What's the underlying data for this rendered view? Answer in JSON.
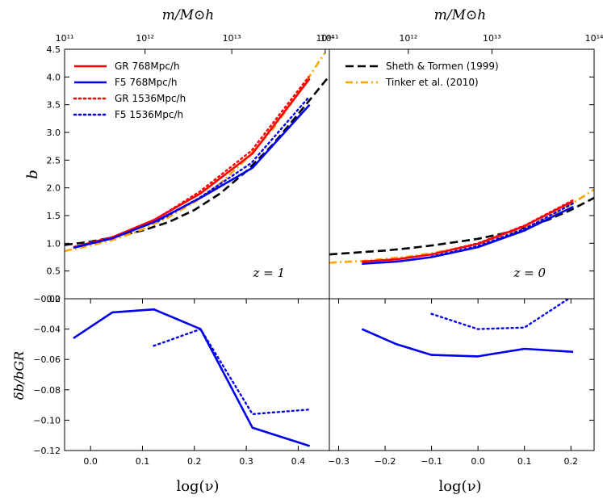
{
  "chart_data": [
    {
      "name": "top-left",
      "type": "line",
      "annotation": "z = 1",
      "ylabel": "b",
      "top_axis_label": "m/M⊙h",
      "ylim": [
        0,
        4.5
      ],
      "xlim": [
        -0.05,
        0.46
      ],
      "yticks": [
        0.0,
        0.5,
        1.0,
        1.5,
        2.0,
        2.5,
        3.0,
        3.5,
        4.0,
        4.5
      ],
      "ytick_labels": [
        "0.0",
        "0.5",
        "1.0",
        "1.5",
        "2.0",
        "2.5",
        "3.0",
        "3.5",
        "4.0",
        "4.5"
      ],
      "top_ticks": [
        {
          "x": -0.05,
          "label": "10¹¹"
        },
        {
          "x": 0.105,
          "label": "10¹²"
        },
        {
          "x": 0.272,
          "label": "10¹³"
        },
        {
          "x": 0.452,
          "label": "10¹⁴"
        }
      ],
      "series": [
        {
          "name": "Sheth & Tormen (1999)",
          "color": "#000000",
          "style": "dashed",
          "x": [
            -0.05,
            0.0,
            0.05,
            0.1,
            0.15,
            0.2,
            0.25,
            0.3,
            0.35,
            0.4,
            0.46
          ],
          "y": [
            0.97,
            1.03,
            1.12,
            1.23,
            1.38,
            1.6,
            1.9,
            2.3,
            2.77,
            3.33,
            4.02
          ]
        },
        {
          "name": "Tinker et al. (2010)",
          "color": "#ffa500",
          "style": "dashdot",
          "x": [
            -0.05,
            0.0,
            0.05,
            0.1,
            0.15,
            0.2,
            0.25,
            0.3,
            0.35,
            0.4,
            0.45
          ],
          "y": [
            0.86,
            0.96,
            1.08,
            1.25,
            1.47,
            1.74,
            2.08,
            2.52,
            3.05,
            3.7,
            4.42
          ]
        },
        {
          "name": "GR 768Mpc/h",
          "color": "#ff0000",
          "style": "solid",
          "x": [
            -0.033,
            0.042,
            0.122,
            0.212,
            0.312,
            0.422
          ],
          "y": [
            0.93,
            1.11,
            1.42,
            1.9,
            2.62,
            3.97
          ]
        },
        {
          "name": "F5 768Mpc/h",
          "color": "#0000ee",
          "style": "solid",
          "x": [
            -0.033,
            0.042,
            0.122,
            0.212,
            0.312,
            0.422
          ],
          "y": [
            0.92,
            1.09,
            1.38,
            1.82,
            2.36,
            3.5
          ]
        },
        {
          "name": "GR 1536Mpc/h",
          "color": "#ff0000",
          "style": "dotted",
          "x": [
            0.13,
            0.21,
            0.31,
            0.42
          ],
          "y": [
            1.46,
            1.93,
            2.67,
            4.0
          ]
        },
        {
          "name": "F5 1536Mpc/h",
          "color": "#0000ee",
          "style": "dotted",
          "x": [
            0.13,
            0.21,
            0.31,
            0.42
          ],
          "y": [
            1.4,
            1.82,
            2.45,
            3.63
          ]
        }
      ]
    },
    {
      "name": "top-right",
      "type": "line",
      "annotation": "z = 0",
      "top_axis_label": "m/M⊙h",
      "ylim": [
        0,
        4.5
      ],
      "xlim": [
        -0.32,
        0.25
      ],
      "top_ticks": [
        {
          "x": -0.32,
          "label": "10¹¹"
        },
        {
          "x": -0.15,
          "label": "10¹²"
        },
        {
          "x": 0.03,
          "label": "10¹³"
        },
        {
          "x": 0.25,
          "label": "10¹⁴"
        }
      ],
      "series": [
        {
          "name": "Sheth & Tormen (1999)",
          "color": "#000000",
          "style": "dashed",
          "x": [
            -0.32,
            -0.25,
            -0.2,
            -0.15,
            -0.1,
            -0.05,
            0.0,
            0.05,
            0.1,
            0.15,
            0.2,
            0.25
          ],
          "y": [
            0.8,
            0.84,
            0.87,
            0.91,
            0.96,
            1.02,
            1.08,
            1.17,
            1.28,
            1.42,
            1.6,
            1.82
          ]
        },
        {
          "name": "Tinker et al. (2010)",
          "color": "#ffa500",
          "style": "dashdot",
          "x": [
            -0.32,
            -0.25,
            -0.2,
            -0.15,
            -0.1,
            -0.05,
            0.0,
            0.05,
            0.1,
            0.15,
            0.2,
            0.25
          ],
          "y": [
            0.65,
            0.68,
            0.72,
            0.76,
            0.82,
            0.9,
            0.99,
            1.11,
            1.27,
            1.46,
            1.7,
            1.97
          ]
        },
        {
          "name": "GR 768Mpc/h",
          "color": "#ff0000",
          "style": "solid",
          "x": [
            -0.25,
            -0.175,
            -0.1,
            0.0,
            0.1,
            0.205
          ],
          "y": [
            0.67,
            0.71,
            0.8,
            0.99,
            1.31,
            1.76
          ]
        },
        {
          "name": "F5 768Mpc/h",
          "color": "#0000ee",
          "style": "solid",
          "x": [
            -0.25,
            -0.175,
            -0.1,
            0.0,
            0.1,
            0.205
          ],
          "y": [
            0.63,
            0.67,
            0.75,
            0.93,
            1.23,
            1.66
          ]
        },
        {
          "name": "GR 1536Mpc/h",
          "color": "#ff0000",
          "style": "dotted",
          "x": [
            -0.1,
            0.0,
            0.1,
            0.205
          ],
          "y": [
            0.8,
            1.0,
            1.32,
            1.78
          ]
        },
        {
          "name": "F5 1536Mpc/h",
          "color": "#0000ee",
          "style": "dotted",
          "x": [
            -0.1,
            0.0,
            0.1,
            0.205
          ],
          "y": [
            0.76,
            0.95,
            1.26,
            1.72
          ]
        }
      ]
    },
    {
      "name": "bottom-left",
      "type": "line",
      "ylabel": "δb/bGR",
      "xlabel": "log(ν)",
      "ylim": [
        -0.12,
        -0.02
      ],
      "xlim": [
        -0.05,
        0.46
      ],
      "xticks": [
        0.0,
        0.1,
        0.2,
        0.3,
        0.4
      ],
      "xtick_labels": [
        "0.0",
        "0.1",
        "0.2",
        "0.3",
        "0.4"
      ],
      "yticks": [
        -0.12,
        -0.1,
        -0.08,
        -0.06,
        -0.04,
        -0.02
      ],
      "ytick_labels": [
        "−0.12",
        "−0.10",
        "−0.08",
        "−0.06",
        "−0.04",
        "−0.02"
      ],
      "series": [
        {
          "name": "F5 768Mpc/h",
          "color": "#0000ee",
          "style": "solid",
          "x": [
            -0.033,
            0.042,
            0.122,
            0.212,
            0.312,
            0.422
          ],
          "y": [
            -0.046,
            -0.029,
            -0.027,
            -0.04,
            -0.105,
            -0.117
          ]
        },
        {
          "name": "F5 1536Mpc/h",
          "color": "#0000ee",
          "style": "dotted",
          "x": [
            0.122,
            0.212,
            0.312,
            0.422
          ],
          "y": [
            -0.051,
            -0.04,
            -0.096,
            -0.093
          ]
        }
      ]
    },
    {
      "name": "bottom-right",
      "type": "line",
      "xlabel": "log(ν)",
      "ylim": [
        -0.12,
        -0.02
      ],
      "xlim": [
        -0.32,
        0.25
      ],
      "xticks": [
        -0.3,
        -0.2,
        -0.1,
        0.0,
        0.1,
        0.2
      ],
      "xtick_labels": [
        "−0.3",
        "−0.2",
        "−0.1",
        "0.0",
        "0.1",
        "0.2"
      ],
      "series": [
        {
          "name": "F5 768Mpc/h",
          "color": "#0000ee",
          "style": "solid",
          "x": [
            -0.25,
            -0.175,
            -0.1,
            0.0,
            0.1,
            0.205
          ],
          "y": [
            -0.04,
            -0.05,
            -0.057,
            -0.058,
            -0.053,
            -0.055
          ]
        },
        {
          "name": "F5 1536Mpc/h",
          "color": "#0000ee",
          "style": "dotted",
          "x": [
            -0.1,
            0.0,
            0.1,
            0.205
          ],
          "y": [
            -0.03,
            -0.04,
            -0.039,
            -0.018
          ]
        }
      ]
    }
  ],
  "legend_left": [
    {
      "label": "GR 768Mpc/h",
      "color": "#ff0000",
      "style": "solid"
    },
    {
      "label": "F5 768Mpc/h",
      "color": "#0000ee",
      "style": "solid"
    },
    {
      "label": "GR 1536Mpc/h",
      "color": "#ff0000",
      "style": "dotted"
    },
    {
      "label": "F5 1536Mpc/h",
      "color": "#0000ee",
      "style": "dotted"
    }
  ],
  "legend_right": [
    {
      "label": "Sheth & Tormen (1999)",
      "color": "#000000",
      "style": "dashed"
    },
    {
      "label": "Tinker et al. (2010)",
      "color": "#ffa500",
      "style": "dashdot"
    }
  ]
}
